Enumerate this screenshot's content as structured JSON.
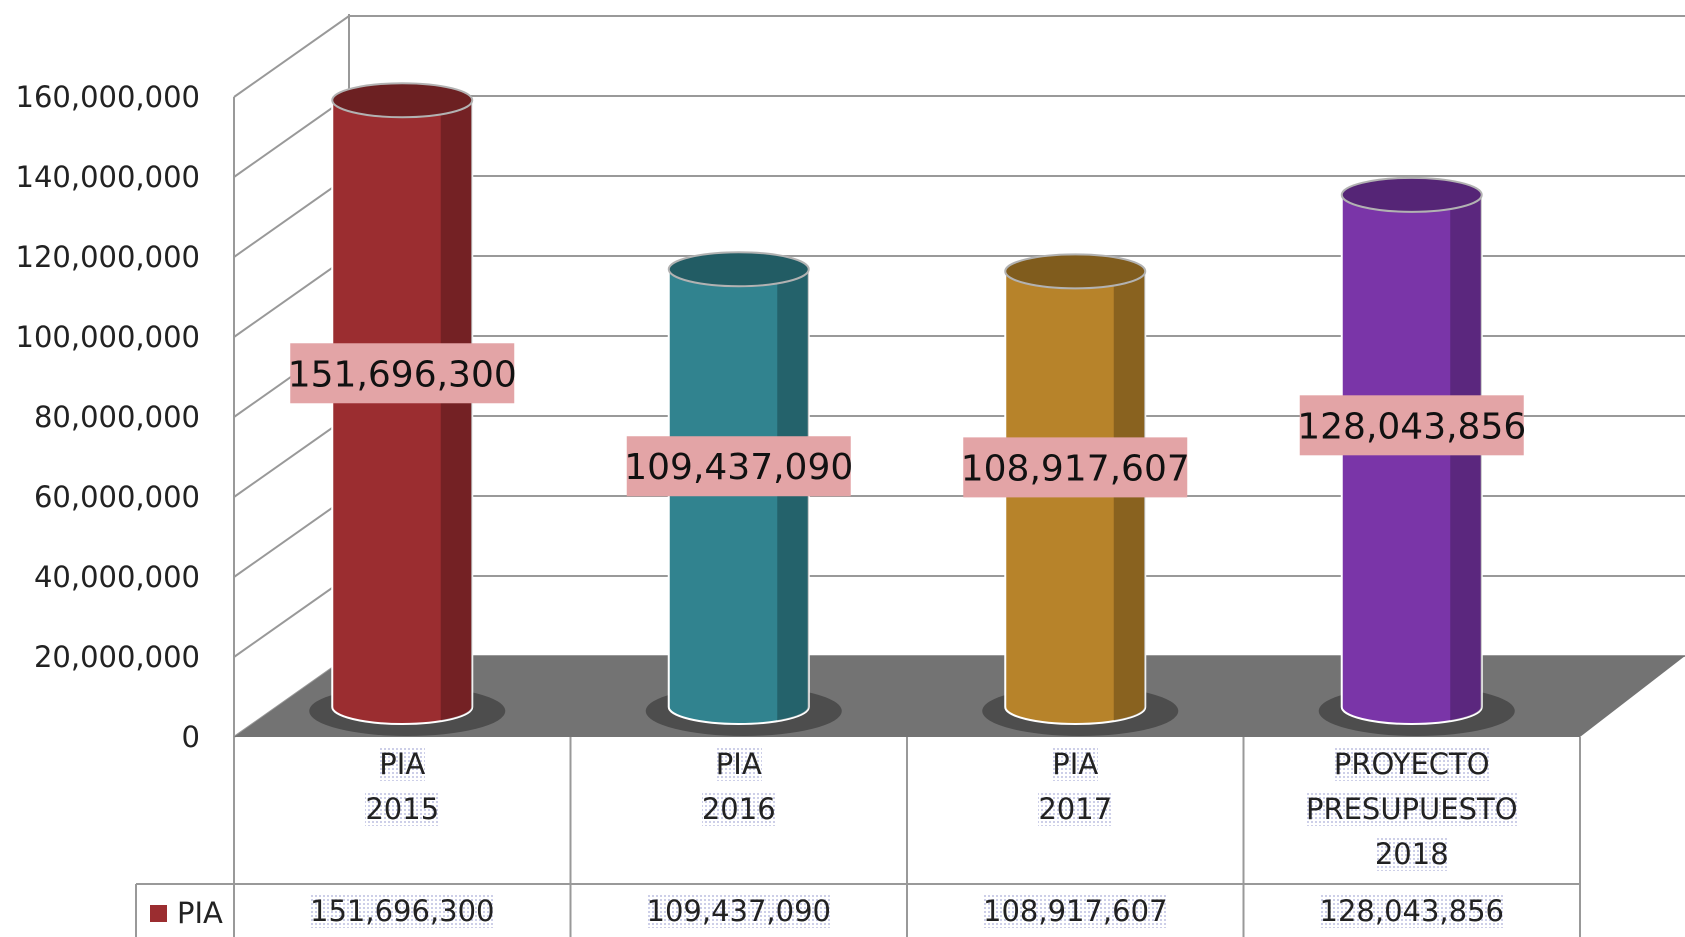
{
  "chart_data": {
    "type": "cylinder",
    "categories": [
      "PIA\n2015",
      "PIA\n2016",
      "PIA\n2017",
      "PROYECTO\nPRESUPUESTO\n2018"
    ],
    "series": [
      {
        "name": "PIA",
        "color": "#9b2d30",
        "colors": [
          "#9b2d30",
          "#31838f",
          "#b7832a",
          "#7a35a8"
        ],
        "values": [
          151696300,
          109437090,
          108917607,
          128043856
        ],
        "value_labels": [
          "151,696,300",
          "109,437,090",
          "108,917,607",
          "128,043,856"
        ]
      }
    ],
    "ylim": [
      0,
      160000000
    ],
    "yticks": [
      {
        "value": 0,
        "label": "0"
      },
      {
        "value": 20000000,
        "label": "20,000,000"
      },
      {
        "value": 40000000,
        "label": "40,000,000"
      },
      {
        "value": 60000000,
        "label": "60,000,000"
      },
      {
        "value": 80000000,
        "label": "80,000,000"
      },
      {
        "value": 100000000,
        "label": "100,000,000"
      },
      {
        "value": 120000000,
        "label": "120,000,000"
      },
      {
        "value": 140000000,
        "label": "140,000,000"
      },
      {
        "value": 160000000,
        "label": "160,000,000"
      }
    ],
    "grid": true,
    "legend": "table"
  }
}
